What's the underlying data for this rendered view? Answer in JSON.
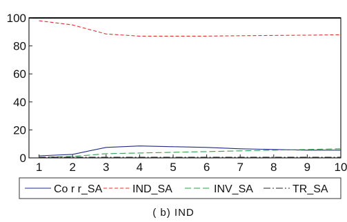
{
  "caption": "( b)  IND",
  "chart_data": {
    "type": "line",
    "x": [
      1,
      2,
      3,
      4,
      5,
      6,
      7,
      8,
      9,
      10
    ],
    "xlim": [
      0.7,
      10
    ],
    "ylim": [
      0,
      100
    ],
    "xticks": [
      1,
      2,
      3,
      4,
      5,
      6,
      7,
      8,
      9,
      10
    ],
    "yticks": [
      0,
      20,
      40,
      60,
      80,
      100
    ],
    "grid": false,
    "legend_position": "bottom",
    "series": [
      {
        "name": "Co r r_SA",
        "color": "#1f2a8a",
        "dash": "solid",
        "values": [
          1.5,
          2.5,
          7.5,
          8.5,
          8,
          7.5,
          6.5,
          6,
          5.5,
          5.5
        ]
      },
      {
        "name": "IND_SA",
        "color": "#e03030",
        "dash": "dashed",
        "values": [
          98,
          95,
          88.5,
          87,
          87,
          87,
          87.3,
          87.5,
          87.7,
          88
        ]
      },
      {
        "name": "INV_SA",
        "color": "#2e9e4a",
        "dash": "longdash",
        "values": [
          0.5,
          1,
          3,
          3.5,
          4,
          4.5,
          5,
          5.5,
          6,
          6.5
        ]
      },
      {
        "name": "TR_SA",
        "color": "#222222",
        "dash": "dashdot",
        "values": [
          0.5,
          0.5,
          0.5,
          0.5,
          0.5,
          0.5,
          0.5,
          0.5,
          0.5,
          0.5
        ]
      }
    ]
  }
}
